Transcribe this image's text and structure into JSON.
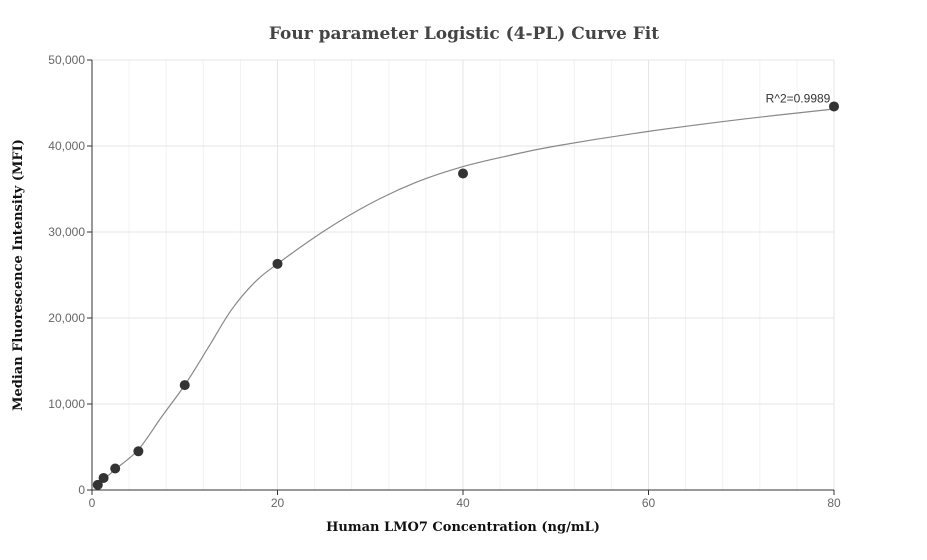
{
  "chart_data": {
    "type": "scatter",
    "title": "Four parameter Logistic (4-PL) Curve Fit",
    "xlabel": "Human LMO7 Concentration (ng/mL)",
    "ylabel": "Median Fluorescence Intensity (MFI)",
    "xlim": [
      0,
      80
    ],
    "ylim": [
      0,
      50000
    ],
    "xticks": [
      0,
      20,
      40,
      60,
      80
    ],
    "yticks": [
      0,
      10000,
      20000,
      30000,
      40000,
      50000
    ],
    "xtick_labels": [
      "0",
      "20",
      "40",
      "60",
      "80"
    ],
    "ytick_labels": [
      "0",
      "10,000",
      "20,000",
      "30,000",
      "40,000",
      "50,000"
    ],
    "grid": true,
    "series": [
      {
        "points": [
          {
            "x": 0.625,
            "y": 600
          },
          {
            "x": 1.25,
            "y": 1400
          },
          {
            "x": 2.5,
            "y": 2500
          },
          {
            "x": 5,
            "y": 4500
          },
          {
            "x": 10,
            "y": 12200
          },
          {
            "x": 20,
            "y": 26300
          },
          {
            "x": 40,
            "y": 36800
          },
          {
            "x": 80,
            "y": 44600
          }
        ]
      }
    ],
    "fit_curve": {
      "x": [
        0.625,
        1.25,
        2.5,
        5,
        7.5,
        10,
        12.5,
        15,
        17.5,
        20,
        25,
        30,
        35,
        40,
        45,
        50,
        60,
        70,
        80
      ],
      "y": [
        500,
        1200,
        2400,
        4700,
        8500,
        12200,
        16500,
        20900,
        24100,
        26300,
        30100,
        33300,
        35800,
        37600,
        38900,
        40000,
        41700,
        43100,
        44300
      ]
    },
    "annotations": [
      {
        "text": "R^2=0.9989",
        "x": 80,
        "y": 44600
      }
    ]
  }
}
